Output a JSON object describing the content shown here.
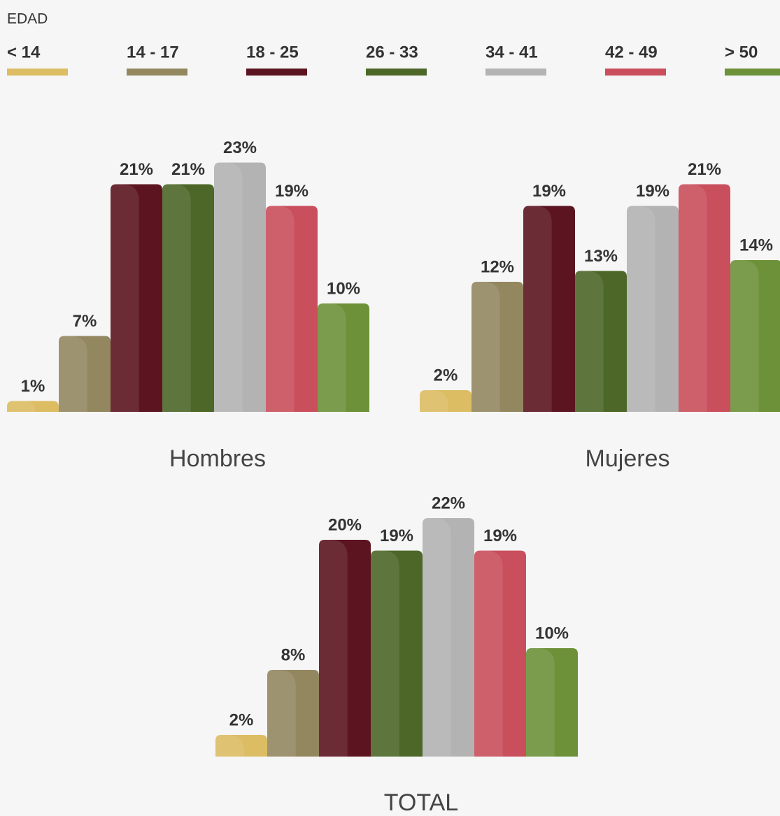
{
  "legend": {
    "title": "EDAD",
    "categories": [
      "< 14",
      "14 - 17",
      "18 - 25",
      "26 - 33",
      "34 - 41",
      "42 - 49",
      "> 50"
    ],
    "colors": [
      "#dcbd63",
      "#938760",
      "#5c1520",
      "#4c6727",
      "#b3b3b3",
      "#c94f5c",
      "#6d9138"
    ]
  },
  "chart_data": [
    {
      "type": "bar",
      "title": "Hombres",
      "values": [
        1,
        7,
        21,
        21,
        23,
        19,
        10
      ],
      "value_labels": [
        "1%",
        "7%",
        "21%",
        "21%",
        "23%",
        "19%",
        "10%"
      ]
    },
    {
      "type": "bar",
      "title": "Mujeres",
      "values": [
        2,
        12,
        19,
        13,
        19,
        21,
        14
      ],
      "value_labels": [
        "2%",
        "12%",
        "19%",
        "13%",
        "19%",
        "21%",
        "14%"
      ]
    },
    {
      "type": "bar",
      "title": "TOTAL",
      "values": [
        2,
        8,
        20,
        19,
        22,
        19,
        10
      ],
      "value_labels": [
        "2%",
        "8%",
        "20%",
        "19%",
        "22%",
        "19%",
        "10%"
      ]
    }
  ]
}
